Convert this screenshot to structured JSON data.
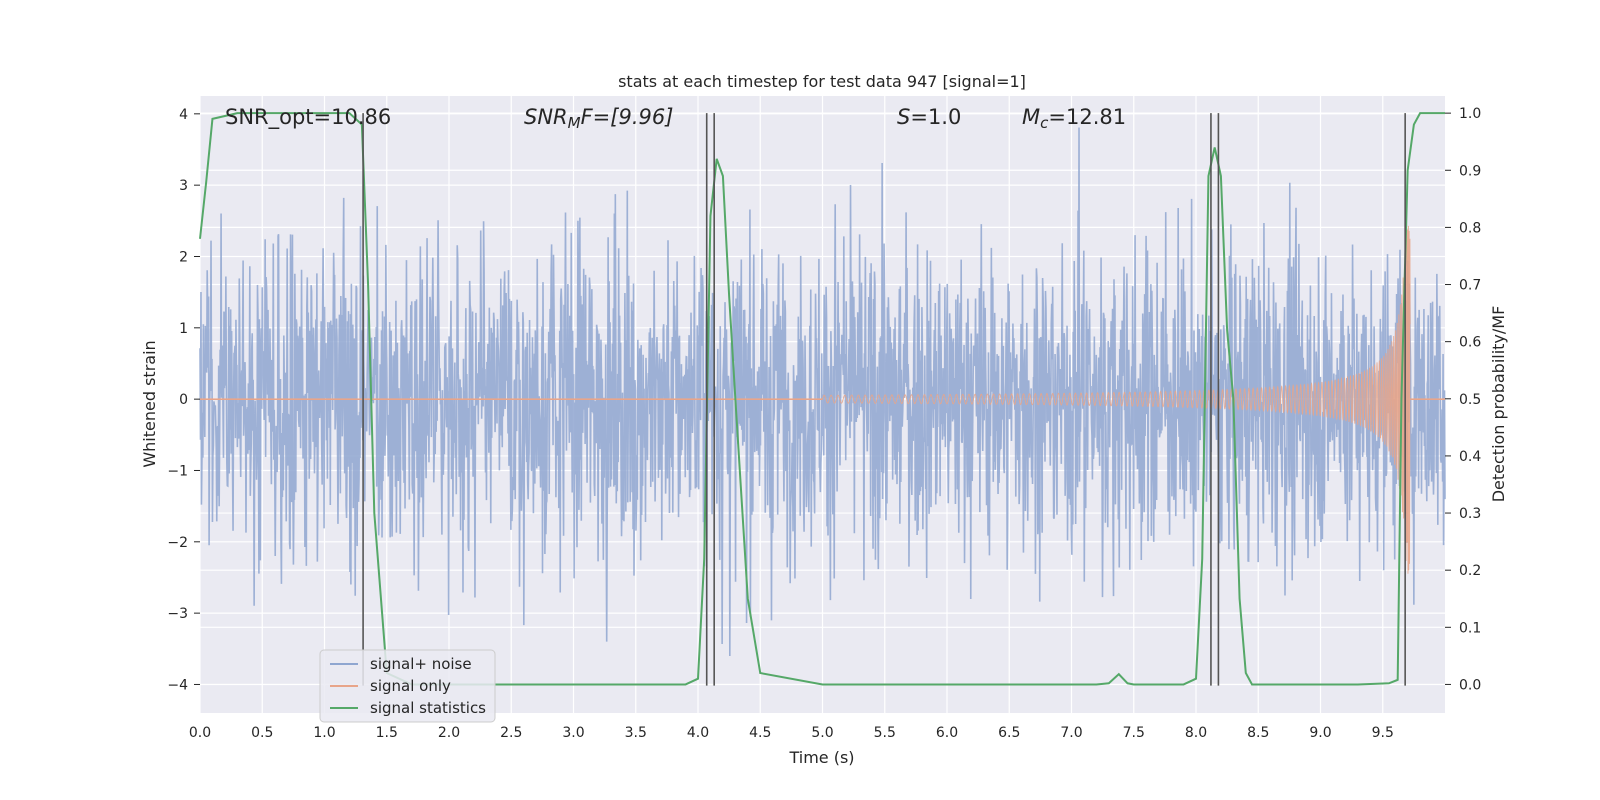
{
  "chart_data": {
    "type": "line",
    "title": "stats at each timestep for test data 947 [signal=1]",
    "xlabel": "Time (s)",
    "ylabel": "Whitened strain",
    "y2label": "Detection probability/MF",
    "xlim": [
      0.0,
      10.0
    ],
    "ylim": [
      -4.4,
      4.25
    ],
    "y2lim": [
      -0.05,
      1.03
    ],
    "xticks": [
      "0.0",
      "0.5",
      "1.0",
      "1.5",
      "2.0",
      "2.5",
      "3.0",
      "3.5",
      "4.0",
      "4.5",
      "5.0",
      "5.5",
      "6.0",
      "6.5",
      "7.0",
      "7.5",
      "8.0",
      "8.5",
      "9.0",
      "9.5"
    ],
    "yticks": [
      "4",
      "3",
      "2",
      "1",
      "0",
      "−1",
      "−2",
      "−3",
      "−4"
    ],
    "y2ticks": [
      "1.0",
      "0.9",
      "0.8",
      "0.7",
      "0.6",
      "0.5",
      "0.4",
      "0.3",
      "0.2",
      "0.1",
      "0.0"
    ],
    "annotations": {
      "snr_opt": "SNR_opt=10.86",
      "snr_mf_prefix": "SNR",
      "snr_mf_sub": "M",
      "snr_mf_rest": "F=[9.96]",
      "s_var": "S",
      "s_rest": "=1.0",
      "mc_var": "M",
      "mc_sub": "c",
      "mc_rest": "=12.81"
    },
    "legend": {
      "placement": "lower-left",
      "entries": [
        "signal+ noise",
        "signal only",
        "signal statistics"
      ]
    },
    "series": [
      {
        "name": "signal+ noise",
        "color": "#8fa6d0",
        "envelope": "noise band, approx. ±1.7 typical, peaks near ±3.5"
      },
      {
        "name": "signal only",
        "color": "#e8a58a",
        "envelope": "chirp amplitude rising from ~0 at 5.5 s to ~2.4 at 9.7 s"
      },
      {
        "name": "signal statistics",
        "color": "#55a868",
        "x": [
          0.0,
          0.05,
          0.1,
          0.3,
          0.6,
          1.0,
          1.2,
          1.3,
          1.35,
          1.4,
          1.5,
          1.7,
          2.0,
          3.0,
          3.8,
          3.9,
          4.0,
          4.05,
          4.1,
          4.15,
          4.2,
          4.25,
          4.3,
          4.4,
          4.5,
          5.0,
          6.0,
          7.0,
          7.2,
          7.3,
          7.38,
          7.45,
          7.5,
          7.9,
          8.0,
          8.05,
          8.1,
          8.15,
          8.2,
          8.25,
          8.3,
          8.35,
          8.4,
          8.45,
          8.5,
          8.6,
          9.0,
          9.3,
          9.55,
          9.62,
          9.65,
          9.7,
          9.75,
          9.8,
          10.0
        ],
        "y": [
          0.78,
          0.88,
          0.99,
          1.0,
          1.0,
          1.0,
          1.0,
          0.98,
          0.7,
          0.3,
          0.02,
          0.0,
          0.0,
          0.0,
          0.0,
          0.0,
          0.01,
          0.22,
          0.82,
          0.92,
          0.89,
          0.68,
          0.5,
          0.15,
          0.02,
          0.0,
          0.0,
          0.0,
          0.0,
          0.002,
          0.018,
          0.002,
          0.0,
          0.0,
          0.01,
          0.22,
          0.89,
          0.94,
          0.89,
          0.62,
          0.5,
          0.15,
          0.02,
          0.0,
          0.0,
          0.0,
          0.0,
          0.0,
          0.002,
          0.008,
          0.5,
          0.9,
          0.98,
          1.0,
          1.0
        ]
      }
    ],
    "vertical_markers_s": [
      1.31,
      4.07,
      4.13,
      8.12,
      8.18,
      9.68
    ],
    "marker_color": "#555555"
  }
}
